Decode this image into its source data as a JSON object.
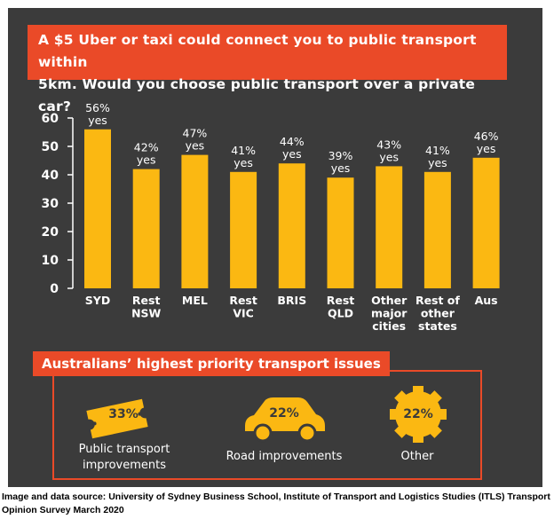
{
  "question": {
    "line1": "A $5 Uber or taxi could connect you to public transport within",
    "line2": "5km. Would you choose public transport over a private car?"
  },
  "chart_data": {
    "type": "bar",
    "categories": [
      [
        "SYD"
      ],
      [
        "Rest",
        "NSW"
      ],
      [
        "MEL"
      ],
      [
        "Rest",
        "VIC"
      ],
      [
        "BRIS"
      ],
      [
        "Rest",
        "QLD"
      ],
      [
        "Other",
        "major",
        "cities"
      ],
      [
        "Rest of",
        "other",
        "states"
      ],
      [
        "Aus"
      ]
    ],
    "values": [
      56,
      42,
      47,
      41,
      44,
      39,
      43,
      41,
      46
    ],
    "value_labels": [
      "56%",
      "42%",
      "47%",
      "41%",
      "44%",
      "39%",
      "43%",
      "41%",
      "46%"
    ],
    "value_suffix": "yes",
    "ylim": [
      0,
      60
    ],
    "yticks": [
      "0",
      "10",
      "20",
      "30",
      "40",
      "50",
      "60"
    ],
    "bar_color": "#fbb812",
    "grid": false
  },
  "issues": {
    "title": "Australians’ highest priority transport issues",
    "items": [
      {
        "icon": "ticket-icon",
        "pct": "33%",
        "label": [
          "Public transport",
          "improvements"
        ]
      },
      {
        "icon": "car-icon",
        "pct": "22%",
        "label": [
          "Road improvements"
        ]
      },
      {
        "icon": "gear-icon",
        "pct": "22%",
        "label": [
          "Other"
        ]
      }
    ]
  },
  "colors": {
    "background": "#3b3b3b",
    "accent": "#ea4a28",
    "bar": "#fbb812",
    "text": "#ffffff"
  },
  "source": "Image and data source: University of Sydney Business School, Institute of Transport and Logistics Studies (ITLS) Transport Opinion Survey March 2020"
}
